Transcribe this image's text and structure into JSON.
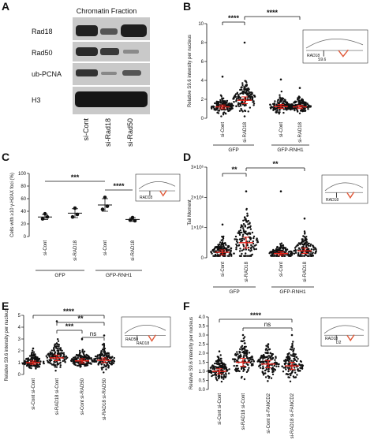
{
  "colors": {
    "black": "#111111",
    "red": "#e32219",
    "gray": "#777777",
    "blot_bg": "#c9c9c9",
    "band": "#2a2a2a",
    "rloop": "#e05a3a"
  },
  "panelA": {
    "letter": "A",
    "title": "Chromatin Fraction",
    "rows": [
      "Rad18",
      "Rad50",
      "ub-PCNA",
      "H3"
    ],
    "lanes": [
      "si-Cont",
      "si-Rad18",
      "si-Rad50"
    ]
  },
  "panelB": {
    "letter": "B",
    "inset": [
      "RAD18",
      "S9.6"
    ],
    "chart_data": {
      "type": "scatter",
      "ylabel": "Relative S9.6 intensity per nucleus",
      "ylim": [
        0,
        10
      ],
      "yticks": [
        "0",
        "2",
        "4",
        "6",
        "8",
        "10"
      ],
      "categories": [
        "si-Cont",
        "si-RAD18",
        "si-Cont",
        "si-RAD18"
      ],
      "groups": [
        "GFP",
        "GFP-RNH1"
      ],
      "means": [
        1.2,
        1.9,
        1.25,
        1.2
      ],
      "spread": [
        0.5,
        0.9,
        0.5,
        0.45
      ],
      "max": [
        4.4,
        8.0,
        4.1,
        3.2
      ],
      "comparisons": [
        {
          "label": "****"
        },
        {
          "label": "****"
        }
      ]
    }
  },
  "panelC": {
    "letter": "C",
    "inset": [
      "RAD18"
    ],
    "chart_data": {
      "type": "scatter",
      "ylabel": "Cells with ≥10 γ-H2AX foci (%)",
      "ylim": [
        0,
        100
      ],
      "yticks": [
        "0",
        "20",
        "40",
        "60",
        "80",
        "100"
      ],
      "categories": [
        "si-Cont",
        "si-RAD18",
        "si-Cont",
        "si-RAD18"
      ],
      "groups": [
        "GFP",
        "GFP-RNH1"
      ],
      "points": [
        [
          28,
          36,
          31
        ],
        [
          31,
          45,
          35
        ],
        [
          43,
          62,
          48
        ],
        [
          26,
          30,
          25
        ]
      ],
      "means": [
        31,
        37,
        50,
        27
      ],
      "sd": [
        4,
        7,
        10,
        3
      ],
      "comparisons": [
        {
          "label": "***"
        },
        {
          "label": "****"
        }
      ]
    }
  },
  "panelD": {
    "letter": "D",
    "inset": [
      "RAD18"
    ],
    "chart_data": {
      "type": "scatter",
      "ylabel": "Tail Moment",
      "ylim": [
        0,
        3000000
      ],
      "yticks": [
        "0",
        "1×10⁶",
        "2×10⁶",
        "3×10⁶"
      ],
      "categories": [
        "si-Cont",
        "si-RAD18",
        "si-Cont",
        "si-RAD18"
      ],
      "groups": [
        "GFP",
        "GFP-RNH1"
      ],
      "means": [
        180000,
        500000,
        140000,
        230000
      ],
      "spread": [
        200000,
        450000,
        150000,
        220000
      ],
      "max": [
        1100000,
        2200000,
        2200000,
        1300000
      ],
      "comparisons": [
        {
          "label": "**"
        },
        {
          "label": "**"
        }
      ]
    }
  },
  "panelE": {
    "letter": "E",
    "inset": [
      "RAD50",
      "RAD18"
    ],
    "chart_data": {
      "type": "scatter",
      "ylabel": "Relative S9.6 intensity per nucleus",
      "ylim": [
        0,
        5
      ],
      "yticks": [
        "0",
        "1",
        "2",
        "3",
        "4",
        "5"
      ],
      "categories": [
        "si-Cont si-Cont",
        "si-RAD18 si-Cont",
        "si-Cont si-RAD50",
        "si-RAD18 si-RAD50"
      ],
      "means": [
        1.0,
        1.4,
        1.15,
        1.2
      ],
      "spread": [
        0.35,
        0.6,
        0.45,
        0.5
      ],
      "max": [
        2.2,
        4.5,
        3.0,
        3.3
      ],
      "comparisons": [
        {
          "label": "****"
        },
        {
          "label": "**"
        },
        {
          "label": "***"
        },
        {
          "label": "ns"
        }
      ]
    }
  },
  "panelF": {
    "letter": "F",
    "inset": [
      "RAD18",
      "D2"
    ],
    "chart_data": {
      "type": "scatter",
      "ylabel": "Relative S9.6 intensity per nucleus",
      "ylim": [
        0,
        4
      ],
      "yticks": [
        "0.0",
        "0.5",
        "1.0",
        "1.5",
        "2.0",
        "2.5",
        "3.0",
        "3.5",
        "4.0"
      ],
      "categories": [
        "si-Cont si-Cont",
        "si-RAD18 si-Cont",
        "si-Cont si-FANCD2",
        "si-RAD18 si-FANCD2"
      ],
      "means": [
        1.0,
        1.5,
        1.4,
        1.3
      ],
      "spread": [
        0.35,
        0.55,
        0.5,
        0.5
      ],
      "max": [
        2.1,
        3.0,
        2.5,
        3.0
      ],
      "comparisons": [
        {
          "label": "****"
        },
        {
          "label": "ns"
        }
      ]
    }
  }
}
